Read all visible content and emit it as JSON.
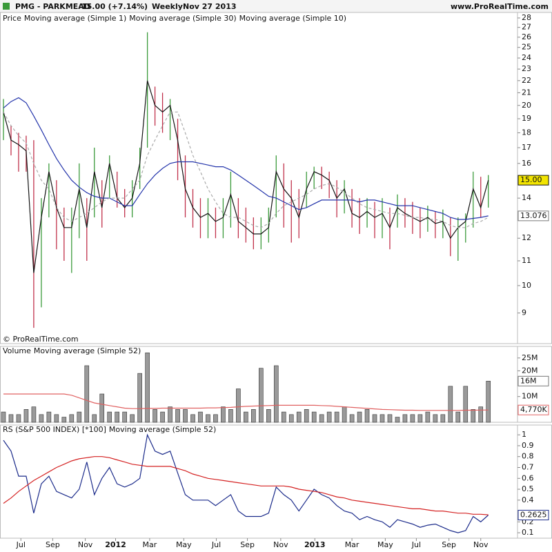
{
  "header": {
    "symbol": "PMG - PARKMEAD",
    "quote": "15.00 (+7.14%)",
    "period": "Weekly",
    "date": "Nov 27 2013",
    "site": "www.ProRealTime.com"
  },
  "copyright": "© ProRealTime.com",
  "chart_data": [
    {
      "type": "ohlc",
      "title": "Price",
      "log_scale": true,
      "up_color": "#3a9a3a",
      "down_color": "#c0304a",
      "ylim": [
        8,
        28.6
      ],
      "yticks": [
        9,
        10,
        11,
        12,
        14,
        16,
        17,
        18,
        19,
        20,
        21,
        22,
        23,
        24,
        25,
        26,
        27,
        28
      ],
      "high": [
        20.5,
        18.5,
        18,
        17.8,
        17.5,
        14,
        16,
        15,
        13.5,
        13.5,
        16,
        14,
        17,
        15,
        16.5,
        15.5,
        14.5,
        15,
        17,
        26.5,
        21.5,
        21,
        20.5,
        19,
        16.5,
        14.5,
        14,
        14,
        13.5,
        14,
        15.5,
        14,
        13.5,
        13,
        13,
        13.5,
        16.5,
        16,
        15,
        14.5,
        15.5,
        15.8,
        15.8,
        15.5,
        15,
        15,
        14.5,
        14,
        14,
        13.8,
        14,
        13.5,
        14.2,
        14,
        13.8,
        13.5,
        13.6,
        13.3,
        13.4,
        13,
        13,
        13.2,
        15.5,
        15.2,
        15.3
      ],
      "low": [
        17.5,
        16.5,
        15.5,
        15.5,
        8.5,
        9.2,
        13,
        11.5,
        11,
        10.5,
        12,
        11,
        13,
        12.5,
        14,
        13.5,
        13,
        13,
        14.5,
        17,
        18.5,
        18,
        17.5,
        15,
        13,
        12.5,
        12,
        12,
        12,
        12,
        12.5,
        12,
        11.8,
        11.5,
        11.5,
        11.8,
        13,
        12.5,
        11.8,
        12,
        13.5,
        14.5,
        14.5,
        14,
        13,
        13.2,
        12.5,
        12.2,
        12.5,
        12,
        12,
        11.5,
        12.5,
        12.5,
        12.2,
        12,
        12.3,
        12,
        12,
        11.2,
        11,
        11.8,
        12.5,
        13,
        13.5
      ],
      "series": [
        {
          "name": "Moving average (Simple 1)",
          "color": "#111111",
          "last_label": "15.00",
          "tag_fill": "#f2e400",
          "values": [
            19.5,
            17.5,
            17.2,
            16.8,
            10.5,
            13,
            15.5,
            13.5,
            12.5,
            12.5,
            14.5,
            12.5,
            15.5,
            13.5,
            16,
            14,
            13.5,
            14,
            16,
            22,
            20,
            19.5,
            20,
            17.5,
            14.5,
            13.5,
            13,
            13.2,
            12.8,
            13,
            14.2,
            12.8,
            12.5,
            12.2,
            12.2,
            12.5,
            15.5,
            14.5,
            14,
            13,
            14.5,
            15.5,
            15.3,
            15,
            14,
            14.5,
            13.2,
            13,
            13.3,
            13,
            13.2,
            12.5,
            13.5,
            13.2,
            13,
            12.8,
            13,
            12.7,
            12.8,
            12,
            12.5,
            12.8,
            14.5,
            13.5,
            15
          ]
        },
        {
          "name": "Moving average (Simple 30)",
          "color": "#2233aa",
          "last_label": "13.076",
          "tag_fill": "#ffffff",
          "values": [
            19.8,
            20.3,
            20.6,
            20.2,
            19.2,
            18.2,
            17.2,
            16.3,
            15.6,
            15,
            14.6,
            14.3,
            14.1,
            14,
            14,
            13.8,
            13.6,
            13.6,
            14.2,
            14.8,
            15.3,
            15.7,
            16,
            16.1,
            16.1,
            16.1,
            16,
            15.9,
            15.8,
            15.8,
            15.6,
            15.3,
            15,
            14.7,
            14.4,
            14.1,
            14,
            13.8,
            13.6,
            13.4,
            13.5,
            13.7,
            13.9,
            13.9,
            13.9,
            13.9,
            13.9,
            13.8,
            13.9,
            13.9,
            13.8,
            13.7,
            13.6,
            13.6,
            13.6,
            13.5,
            13.4,
            13.3,
            13.2,
            13,
            12.9,
            12.9,
            12.95,
            13,
            13.076
          ]
        },
        {
          "name": "Moving average (Simple 10)",
          "color": "#aaaaaa",
          "dashed": true,
          "values": [
            19.5,
            18.5,
            17.8,
            17.3,
            16,
            15,
            14.5,
            13.5,
            13,
            12.8,
            13,
            13.2,
            13.5,
            13.8,
            14,
            14,
            14,
            14.5,
            15,
            16.5,
            17.5,
            18.5,
            19.5,
            19.5,
            18,
            16.5,
            15.5,
            14.5,
            13.8,
            13.2,
            13,
            13,
            12.8,
            12.6,
            12.5,
            12.7,
            13.2,
            13.6,
            13.8,
            14,
            14.2,
            14.5,
            14.7,
            14.8,
            14.6,
            14.3,
            14,
            13.7,
            13.5,
            13.4,
            13.3,
            13.2,
            13.2,
            13.1,
            13,
            13,
            12.9,
            12.9,
            12.8,
            12.6,
            12.5,
            12.5,
            12.7,
            12.8,
            13
          ]
        }
      ]
    },
    {
      "type": "bar",
      "title": "Volume",
      "color": "#9a9a9a",
      "last_label": "16M",
      "ylim": [
        0,
        29.5
      ],
      "yticks": [
        {
          "value": 10,
          "label": "10M"
        },
        {
          "value": 20,
          "label": "20M"
        },
        {
          "value": 25,
          "label": "25M"
        }
      ],
      "values": [
        4,
        3,
        3,
        5,
        6,
        3,
        4,
        3,
        2,
        3,
        4,
        22,
        3,
        11,
        4,
        4,
        4,
        3,
        19,
        27,
        5,
        4,
        6,
        5,
        5,
        3,
        4,
        3,
        3,
        6,
        5,
        13,
        4,
        5,
        21,
        5,
        22,
        4,
        3,
        4,
        5,
        4,
        3,
        4,
        4,
        6,
        3,
        4,
        5,
        3,
        3,
        3,
        2,
        3,
        3,
        3,
        4,
        3,
        3,
        14,
        4,
        14,
        5,
        6,
        16
      ],
      "series": [
        {
          "name": "Moving average (Simple 52)",
          "color": "#e06060",
          "last_label": "4,770K",
          "values": [
            11,
            11,
            11,
            11,
            11,
            11,
            11,
            11,
            11,
            10.5,
            9.5,
            8.5,
            7.5,
            7,
            6.5,
            6,
            5.5,
            5.3,
            5.3,
            5.4,
            5.4,
            5.5,
            5.5,
            5.5,
            5.5,
            5.5,
            5.5,
            5.6,
            5.6,
            5.7,
            5.8,
            6,
            6.2,
            6.3,
            6.4,
            6.5,
            6.6,
            6.6,
            6.6,
            6.6,
            6.6,
            6.6,
            6.5,
            6.4,
            6.2,
            6,
            5.8,
            5.6,
            5.4,
            5.2,
            5,
            4.9,
            4.8,
            4.7,
            4.7,
            4.6,
            4.6,
            4.6,
            4.6,
            4.6,
            4.6,
            4.7,
            4.7,
            4.75,
            4.77
          ]
        }
      ]
    },
    {
      "type": "line",
      "ylim": [
        0.05,
        1.09
      ],
      "yticks": [
        0.1,
        0.2,
        0.4,
        0.5,
        0.6,
        0.7,
        0.8,
        0.9,
        1
      ],
      "xticks": [
        {
          "value": 2.3,
          "label": "Jul"
        },
        {
          "value": 6.5,
          "label": "Sep"
        },
        {
          "value": 10.8,
          "label": "Nov"
        },
        {
          "value": 14.8,
          "label": "2012"
        },
        {
          "value": 19.3,
          "label": "Mar"
        },
        {
          "value": 23.8,
          "label": "May"
        },
        {
          "value": 28.1,
          "label": "Jul"
        },
        {
          "value": 32.2,
          "label": "Sep"
        },
        {
          "value": 36.6,
          "label": "Nov"
        },
        {
          "value": 41.1,
          "label": "2013"
        },
        {
          "value": 46.0,
          "label": "Mar"
        },
        {
          "value": 50.4,
          "label": "May"
        },
        {
          "value": 54.5,
          "label": "Jul"
        },
        {
          "value": 58.8,
          "label": "Sep"
        },
        {
          "value": 63.0,
          "label": "Nov"
        }
      ],
      "series": [
        {
          "name": "RS (S&P 500 INDEX) [*100]",
          "color": "#1a2a8a",
          "last_label": "0.2625",
          "values": [
            0.95,
            0.85,
            0.62,
            0.62,
            0.28,
            0.55,
            0.62,
            0.48,
            0.45,
            0.42,
            0.5,
            0.75,
            0.45,
            0.6,
            0.7,
            0.55,
            0.52,
            0.55,
            0.6,
            1.0,
            0.85,
            0.82,
            0.85,
            0.65,
            0.45,
            0.4,
            0.4,
            0.4,
            0.35,
            0.4,
            0.45,
            0.3,
            0.25,
            0.25,
            0.25,
            0.28,
            0.52,
            0.45,
            0.4,
            0.3,
            0.4,
            0.5,
            0.45,
            0.42,
            0.35,
            0.3,
            0.28,
            0.22,
            0.25,
            0.22,
            0.2,
            0.15,
            0.22,
            0.2,
            0.18,
            0.15,
            0.17,
            0.18,
            0.15,
            0.12,
            0.1,
            0.12,
            0.25,
            0.2,
            0.2625
          ]
        },
        {
          "name": "Moving average (Simple 52)",
          "color": "#d42020",
          "values": [
            0.37,
            0.42,
            0.48,
            0.53,
            0.58,
            0.62,
            0.66,
            0.7,
            0.73,
            0.76,
            0.78,
            0.79,
            0.8,
            0.8,
            0.79,
            0.77,
            0.75,
            0.73,
            0.72,
            0.71,
            0.71,
            0.71,
            0.71,
            0.69,
            0.67,
            0.64,
            0.62,
            0.6,
            0.59,
            0.58,
            0.57,
            0.56,
            0.55,
            0.54,
            0.53,
            0.53,
            0.53,
            0.53,
            0.52,
            0.5,
            0.49,
            0.48,
            0.47,
            0.45,
            0.43,
            0.42,
            0.4,
            0.39,
            0.38,
            0.37,
            0.36,
            0.35,
            0.34,
            0.33,
            0.32,
            0.32,
            0.31,
            0.3,
            0.3,
            0.29,
            0.28,
            0.28,
            0.27,
            0.27,
            0.265
          ]
        }
      ]
    }
  ]
}
